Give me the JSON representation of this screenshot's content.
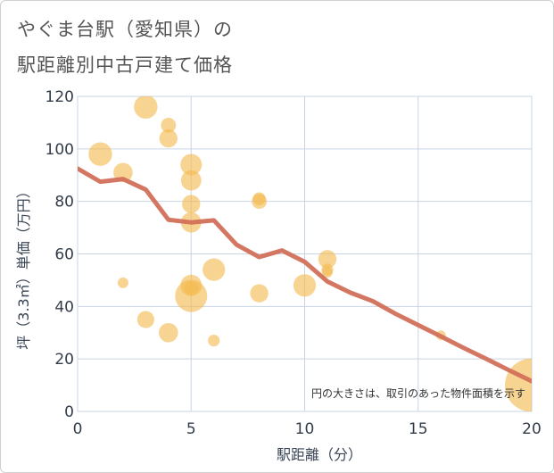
{
  "title_line1": "やぐま台駅（愛知県）の",
  "title_line2": "駅距離別中古戸建て価格",
  "chart_data": {
    "type": "scatter",
    "title": "やぐま台駅（愛知県）の駅距離別中古戸建て価格",
    "xlabel": "駅距離（分）",
    "ylabel": "坪（3.3㎡）単価（万円）",
    "xlim": [
      0,
      20
    ],
    "ylim": [
      0,
      120
    ],
    "xticks": [
      0,
      5,
      10,
      15,
      20
    ],
    "yticks": [
      0,
      20,
      40,
      60,
      80,
      100,
      120
    ],
    "grid": true,
    "note": "円の大きさは、取引のあった物件面積を示す",
    "colors": {
      "bubble": "#f3b94f",
      "trend": "#d2705a",
      "grid": "#c9d5e6"
    },
    "points": [
      {
        "x": 1,
        "y": 98,
        "size": 2.2
      },
      {
        "x": 2,
        "y": 91,
        "size": 1.8
      },
      {
        "x": 2,
        "y": 49,
        "size": 1.0
      },
      {
        "x": 3,
        "y": 116,
        "size": 2.2
      },
      {
        "x": 3,
        "y": 35,
        "size": 1.6
      },
      {
        "x": 4,
        "y": 109,
        "size": 1.4
      },
      {
        "x": 4,
        "y": 104,
        "size": 1.7
      },
      {
        "x": 4,
        "y": 30,
        "size": 1.8
      },
      {
        "x": 5,
        "y": 94,
        "size": 2.0
      },
      {
        "x": 5,
        "y": 88,
        "size": 1.9
      },
      {
        "x": 5,
        "y": 79,
        "size": 1.7
      },
      {
        "x": 5,
        "y": 72,
        "size": 1.9
      },
      {
        "x": 5,
        "y": 48,
        "size": 2.0
      },
      {
        "x": 5,
        "y": 47,
        "size": 1.3
      },
      {
        "x": 5,
        "y": 44,
        "size": 3.0
      },
      {
        "x": 6,
        "y": 54,
        "size": 2.1
      },
      {
        "x": 6,
        "y": 27,
        "size": 1.1
      },
      {
        "x": 8,
        "y": 81,
        "size": 1.2
      },
      {
        "x": 8,
        "y": 80,
        "size": 1.4
      },
      {
        "x": 8,
        "y": 45,
        "size": 1.7
      },
      {
        "x": 10,
        "y": 48,
        "size": 2.1
      },
      {
        "x": 11,
        "y": 58,
        "size": 1.7
      },
      {
        "x": 11,
        "y": 54,
        "size": 1.1
      },
      {
        "x": 11,
        "y": 53,
        "size": 1.0
      },
      {
        "x": 16,
        "y": 29,
        "size": 0.9
      },
      {
        "x": 20,
        "y": 10,
        "size": 5.0
      }
    ],
    "trend": {
      "x": [
        0,
        1,
        2,
        3,
        4,
        5,
        6,
        7,
        8,
        9,
        10,
        11,
        12,
        13,
        14,
        15,
        16,
        17,
        18,
        19,
        20
      ],
      "y": [
        92.5,
        87.5,
        88.5,
        84.5,
        73,
        72,
        72.8,
        63.5,
        58.8,
        61.3,
        57,
        49.5,
        45.3,
        42,
        37.2,
        32.9,
        28.6,
        24.2,
        20.0,
        15.7,
        11.5
      ]
    }
  }
}
